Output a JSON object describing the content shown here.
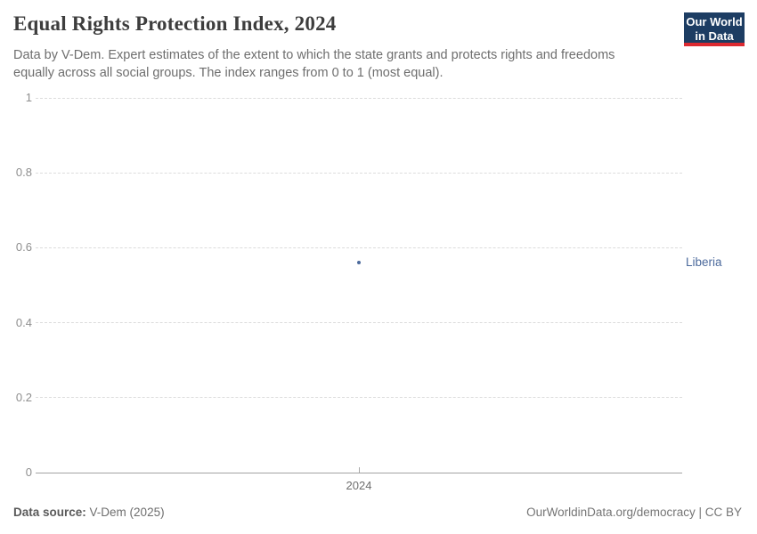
{
  "header": {
    "title": "Equal Rights Protection Index, 2024",
    "subtitle": "Data by V-Dem. Expert estimates of the extent to which the state grants and protects rights and freedoms equally across all social groups. The index ranges from 0 to 1 (most equal).",
    "logo": {
      "line1": "Our World",
      "line2": "in Data",
      "bg_color": "#1d3d63",
      "bar_color": "#dc2a31"
    }
  },
  "chart_data": {
    "type": "scatter",
    "title": "Equal Rights Protection Index, 2024",
    "x": [
      2024
    ],
    "series": [
      {
        "name": "Liberia",
        "values": [
          0.56
        ],
        "color": "#4c6a9c"
      }
    ],
    "xlabel": "",
    "ylabel": "",
    "ylim": [
      0,
      1
    ],
    "yticks": [
      0,
      0.2,
      0.4,
      0.6,
      0.8,
      1
    ],
    "xticks": [
      "2024"
    ],
    "grid": "horizontal-dashed",
    "legend_position": "right-of-point",
    "entity_label": "Liberia"
  },
  "footer": {
    "source_label": "Data source:",
    "source_value": "V-Dem (2025)",
    "credit": "OurWorldinData.org/democracy | CC BY"
  },
  "colors": {
    "accent_series": "#4c6a9c",
    "gridline": "#dcdcdc",
    "axis_line": "#a3a3a3",
    "tick_text": "#8e8e8e"
  }
}
